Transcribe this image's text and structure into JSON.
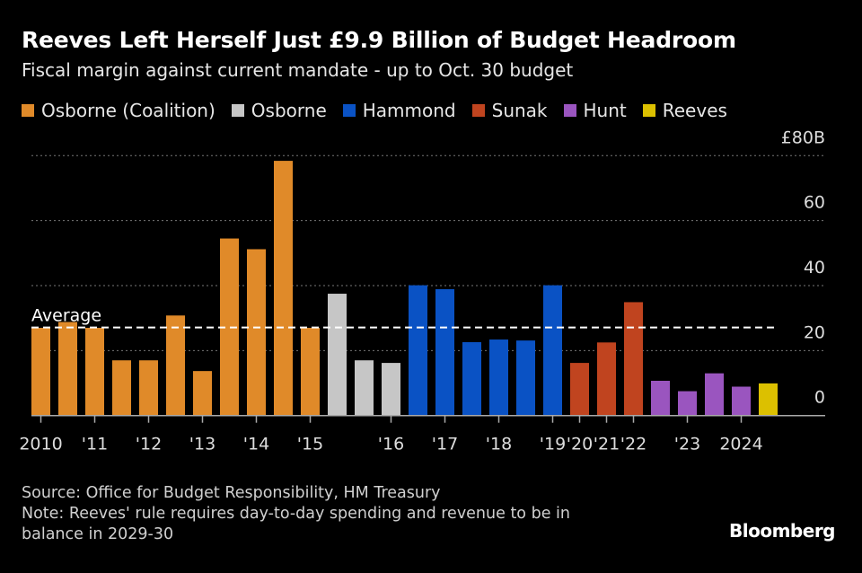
{
  "title": "Reeves Left Herself Just £9.9 Billion of Budget Headroom",
  "subtitle": "Fiscal margin against current mandate - up to Oct. 30 budget",
  "source": "Source: Office for Budget Responsibility, HM Treasury",
  "note_line1": "Note: Reeves' rule requires day-to-day spending and revenue to be in",
  "note_line2": "balance in 2029-30",
  "logo": "Bloomberg",
  "chart_data": {
    "type": "bar",
    "ylim": [
      0,
      80
    ],
    "yunit": "£",
    "yticks": [
      {
        "v": 0,
        "label": "0"
      },
      {
        "v": 20,
        "label": "20"
      },
      {
        "v": 40,
        "label": "40"
      },
      {
        "v": 60,
        "label": "60"
      },
      {
        "v": 80,
        "label": "£80B"
      }
    ],
    "grid": true,
    "legend_position": "top",
    "series": [
      {
        "name": "Osborne (Coalition)",
        "color": "#e08a29"
      },
      {
        "name": "Osborne",
        "color": "#c6c6c6"
      },
      {
        "name": "Hammond",
        "color": "#0a52c4"
      },
      {
        "name": "Sunak",
        "color": "#c0441f"
      },
      {
        "name": "Hunt",
        "color": "#9a55bf"
      },
      {
        "name": "Reeves",
        "color": "#dcc000"
      }
    ],
    "bars": [
      {
        "s": 0,
        "v": 27.0
      },
      {
        "s": 0,
        "v": 28.8
      },
      {
        "s": 0,
        "v": 27.0
      },
      {
        "s": 0,
        "v": 17.0
      },
      {
        "s": 0,
        "v": 17.0
      },
      {
        "s": 0,
        "v": 30.8
      },
      {
        "s": 0,
        "v": 13.7
      },
      {
        "s": 0,
        "v": 54.5
      },
      {
        "s": 0,
        "v": 51.2
      },
      {
        "s": 0,
        "v": 78.4
      },
      {
        "s": 0,
        "v": 27.0
      },
      {
        "s": 1,
        "v": 37.5
      },
      {
        "s": 1,
        "v": 17.0
      },
      {
        "s": 1,
        "v": 16.2
      },
      {
        "s": 2,
        "v": 40.1
      },
      {
        "s": 2,
        "v": 38.9
      },
      {
        "s": 2,
        "v": 22.6
      },
      {
        "s": 2,
        "v": 23.4
      },
      {
        "s": 2,
        "v": 23.1
      },
      {
        "s": 2,
        "v": 40.1
      },
      {
        "s": 3,
        "v": 16.2
      },
      {
        "s": 3,
        "v": 22.5
      },
      {
        "s": 3,
        "v": 34.9
      },
      {
        "s": 4,
        "v": 10.7
      },
      {
        "s": 4,
        "v": 7.5
      },
      {
        "s": 4,
        "v": 13.0
      },
      {
        "s": 4,
        "v": 8.9
      },
      {
        "s": 5,
        "v": 9.9
      }
    ],
    "xticks": [
      {
        "i": 0,
        "label": "2010"
      },
      {
        "i": 2,
        "label": "'11"
      },
      {
        "i": 4,
        "label": "'12"
      },
      {
        "i": 6,
        "label": "'13"
      },
      {
        "i": 8,
        "label": "'14"
      },
      {
        "i": 10,
        "label": "'15"
      },
      {
        "i": 13,
        "label": "'16"
      },
      {
        "i": 15,
        "label": "'17"
      },
      {
        "i": 17,
        "label": "'18"
      },
      {
        "i": 19,
        "label": "'19"
      },
      {
        "i": 20,
        "label": "'20"
      },
      {
        "i": 21,
        "label": "'21"
      },
      {
        "i": 22,
        "label": "'22"
      },
      {
        "i": 24,
        "label": "'23"
      },
      {
        "i": 26,
        "label": "2024"
      }
    ],
    "average": {
      "label": "Average",
      "value": 27.1
    }
  }
}
